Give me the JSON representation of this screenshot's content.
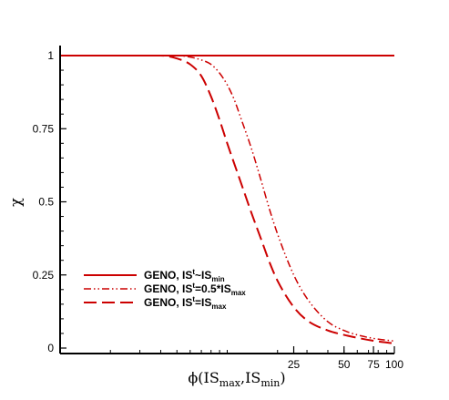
{
  "chart_data": {
    "type": "line",
    "xlabel": {
      "base": "ϕ(IS",
      "sub1": "max",
      "sep": ",IS",
      "sub2": "min",
      "close": ")"
    },
    "ylabel": "χ",
    "xscale": "log",
    "xlim": [
      1,
      100
    ],
    "ylim": [
      0,
      1
    ],
    "xticks": [
      {
        "value": 25,
        "label": "25"
      },
      {
        "value": 50,
        "label": "50"
      },
      {
        "value": 75,
        "label": "75"
      },
      {
        "value": 100,
        "label": "100"
      }
    ],
    "yticks": [
      {
        "value": 0,
        "label": "0"
      },
      {
        "value": 0.25,
        "label": "0.25"
      },
      {
        "value": 0.5,
        "label": "0.5"
      },
      {
        "value": 0.75,
        "label": "0.75"
      },
      {
        "value": 1,
        "label": "1"
      }
    ],
    "grid": false,
    "legend_position": "bottom-left",
    "color": "#cc0000",
    "series": [
      {
        "name": "GENO, IS^t~IS_min",
        "legend": {
          "pre": "GENO, IS",
          "sup": "t",
          "mid": "~IS",
          "sub": "min"
        },
        "dash": "solid",
        "x": [
          1,
          2,
          5,
          10,
          20,
          50,
          100
        ],
        "y": [
          1,
          1,
          1,
          1,
          1,
          1,
          1
        ]
      },
      {
        "name": "GENO, IS^t=0.5*IS_max",
        "legend": {
          "pre": "GENO, IS",
          "sup": "t",
          "mid": "=0.5*IS",
          "sub": "max"
        },
        "dash": "dash-dot-dot",
        "x": [
          1,
          3,
          5,
          6,
          7,
          8,
          9,
          10,
          11,
          12,
          14,
          16,
          18,
          20,
          25,
          30,
          40,
          50,
          60,
          75,
          100
        ],
        "y": [
          1,
          1,
          1,
          0.995,
          0.985,
          0.97,
          0.94,
          0.9,
          0.85,
          0.79,
          0.68,
          0.57,
          0.47,
          0.39,
          0.25,
          0.17,
          0.09,
          0.06,
          0.045,
          0.033,
          0.024
        ]
      },
      {
        "name": "GENO, IS^t=IS_max",
        "legend": {
          "pre": "GENO, IS",
          "sup": "t",
          "mid": "=IS",
          "sub": "max"
        },
        "dash": "dashed",
        "x": [
          1,
          3,
          4,
          5,
          6,
          7,
          8,
          9,
          10,
          12,
          14,
          16,
          18,
          20,
          25,
          30,
          40,
          50,
          60,
          75,
          100
        ],
        "y": [
          1,
          1,
          1,
          0.99,
          0.97,
          0.93,
          0.86,
          0.78,
          0.7,
          0.57,
          0.46,
          0.37,
          0.29,
          0.23,
          0.14,
          0.095,
          0.06,
          0.045,
          0.035,
          0.025,
          0.016
        ]
      }
    ]
  }
}
